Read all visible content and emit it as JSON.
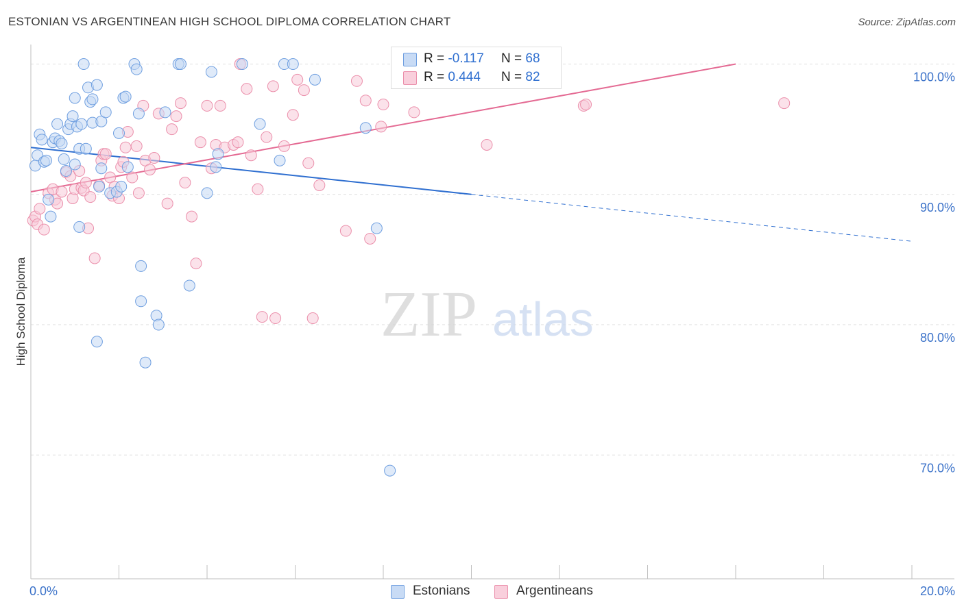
{
  "chart_data": {
    "type": "scatter",
    "title": "ESTONIAN VS ARGENTINEAN HIGH SCHOOL DIPLOMA CORRELATION CHART",
    "source": "Source: ZipAtlas.com",
    "xlabel": "",
    "ylabel": "High School Diploma",
    "xlim": [
      0,
      20
    ],
    "ylim": [
      60.5,
      101.5
    ],
    "x_tick_labels": [
      "0.0%",
      "20.0%"
    ],
    "y_ticks": [
      100,
      90,
      80,
      70
    ],
    "y_tick_labels": [
      "100.0%",
      "90.0%",
      "80.0%",
      "70.0%"
    ],
    "watermark": {
      "part1": "ZIP",
      "part2": "atlas"
    },
    "colors": {
      "blue_fill": "#c5d8f4",
      "blue_stroke": "#6f9fe0",
      "blue_line": "#2f6fd0",
      "pink_fill": "#f8cad8",
      "pink_stroke": "#eb8fab",
      "pink_line": "#e46a93",
      "tick_label": "#3b72c9",
      "grid": "#dedede"
    },
    "stats": {
      "estonians": {
        "r_label": "R = ",
        "r_value": "-0.117",
        "n_label": "N = ",
        "n_value": "68"
      },
      "argentineans": {
        "r_label": "R = ",
        "r_value": "0.444",
        "n_label": "N = ",
        "n_value": "82"
      }
    },
    "series": [
      {
        "name": "Estonians",
        "trend": {
          "x0": 0.0,
          "y0": 93.6,
          "x1": 10.0,
          "y1": 90.0,
          "x_dash_end": 20.0,
          "y_dash_end": 86.4
        },
        "points": [
          [
            0.1,
            92.2
          ],
          [
            0.15,
            93.0
          ],
          [
            0.2,
            94.6
          ],
          [
            0.25,
            94.2
          ],
          [
            0.3,
            92.5
          ],
          [
            0.35,
            92.6
          ],
          [
            0.4,
            89.6
          ],
          [
            0.45,
            88.3
          ],
          [
            0.5,
            94.0
          ],
          [
            0.55,
            94.3
          ],
          [
            0.6,
            95.4
          ],
          [
            0.65,
            94.1
          ],
          [
            0.7,
            93.9
          ],
          [
            0.75,
            92.7
          ],
          [
            0.8,
            91.8
          ],
          [
            0.85,
            95.0
          ],
          [
            0.9,
            95.4
          ],
          [
            0.95,
            96.0
          ],
          [
            1.0,
            92.3
          ],
          [
            1.05,
            95.2
          ],
          [
            1.1,
            93.5
          ],
          [
            1.15,
            95.4
          ],
          [
            1.0,
            97.4
          ],
          [
            1.1,
            87.5
          ],
          [
            1.2,
            100.0
          ],
          [
            1.25,
            93.5
          ],
          [
            1.3,
            98.2
          ],
          [
            1.35,
            97.1
          ],
          [
            1.4,
            97.3
          ],
          [
            1.4,
            95.5
          ],
          [
            1.5,
            78.7
          ],
          [
            1.5,
            98.4
          ],
          [
            1.55,
            90.6
          ],
          [
            1.6,
            95.6
          ],
          [
            1.7,
            96.3
          ],
          [
            1.8,
            90.1
          ],
          [
            1.95,
            90.2
          ],
          [
            2.0,
            94.7
          ],
          [
            2.05,
            90.6
          ],
          [
            2.1,
            97.4
          ],
          [
            2.15,
            97.5
          ],
          [
            2.2,
            92.1
          ],
          [
            2.35,
            100.0
          ],
          [
            2.4,
            99.6
          ],
          [
            2.45,
            96.2
          ],
          [
            2.5,
            81.8
          ],
          [
            2.5,
            84.5
          ],
          [
            2.6,
            77.1
          ],
          [
            2.85,
            80.7
          ],
          [
            2.9,
            80.0
          ],
          [
            3.05,
            96.3
          ],
          [
            3.35,
            100.0
          ],
          [
            3.4,
            100.0
          ],
          [
            3.6,
            83.0
          ],
          [
            4.0,
            90.1
          ],
          [
            4.1,
            99.4
          ],
          [
            4.25,
            93.1
          ],
          [
            4.8,
            100.0
          ],
          [
            5.2,
            95.4
          ],
          [
            5.65,
            92.6
          ],
          [
            5.75,
            100.0
          ],
          [
            5.95,
            100.0
          ],
          [
            6.45,
            98.8
          ],
          [
            7.6,
            95.1
          ],
          [
            7.85,
            87.4
          ],
          [
            8.15,
            68.8
          ],
          [
            4.2,
            92.1
          ],
          [
            1.6,
            92.0
          ]
        ]
      },
      {
        "name": "Argentineans",
        "trend": {
          "x0": 0.0,
          "y0": 90.2,
          "x1": 16.0,
          "y1": 100.0
        },
        "points": [
          [
            0.05,
            88.0
          ],
          [
            0.1,
            88.3
          ],
          [
            0.15,
            87.7
          ],
          [
            0.2,
            88.9
          ],
          [
            0.3,
            87.3
          ],
          [
            0.4,
            90.1
          ],
          [
            0.5,
            90.4
          ],
          [
            0.55,
            89.6
          ],
          [
            0.6,
            89.3
          ],
          [
            0.7,
            90.2
          ],
          [
            0.8,
            91.7
          ],
          [
            0.9,
            91.4
          ],
          [
            0.95,
            89.7
          ],
          [
            1.0,
            90.4
          ],
          [
            1.1,
            91.8
          ],
          [
            1.15,
            90.5
          ],
          [
            1.2,
            90.3
          ],
          [
            1.25,
            90.9
          ],
          [
            1.3,
            87.4
          ],
          [
            1.35,
            89.8
          ],
          [
            1.45,
            85.1
          ],
          [
            1.55,
            90.7
          ],
          [
            1.6,
            92.6
          ],
          [
            1.65,
            93.1
          ],
          [
            1.7,
            93.1
          ],
          [
            1.8,
            91.3
          ],
          [
            1.85,
            89.9
          ],
          [
            1.9,
            90.6
          ],
          [
            2.0,
            89.7
          ],
          [
            2.05,
            92.1
          ],
          [
            2.1,
            92.5
          ],
          [
            2.15,
            93.6
          ],
          [
            2.2,
            94.8
          ],
          [
            2.3,
            91.3
          ],
          [
            2.4,
            93.7
          ],
          [
            2.45,
            90.1
          ],
          [
            2.55,
            96.8
          ],
          [
            2.6,
            92.6
          ],
          [
            2.7,
            91.9
          ],
          [
            2.8,
            92.8
          ],
          [
            2.9,
            96.2
          ],
          [
            3.1,
            89.3
          ],
          [
            3.2,
            95.0
          ],
          [
            3.3,
            96.0
          ],
          [
            3.4,
            97.0
          ],
          [
            3.5,
            90.9
          ],
          [
            3.65,
            88.3
          ],
          [
            3.75,
            84.7
          ],
          [
            3.85,
            94.0
          ],
          [
            4.0,
            96.8
          ],
          [
            4.1,
            92.0
          ],
          [
            4.2,
            93.8
          ],
          [
            4.3,
            96.8
          ],
          [
            4.4,
            93.6
          ],
          [
            4.6,
            93.8
          ],
          [
            4.7,
            94.0
          ],
          [
            4.75,
            100.0
          ],
          [
            4.9,
            98.1
          ],
          [
            5.0,
            93.0
          ],
          [
            5.15,
            90.4
          ],
          [
            5.25,
            80.6
          ],
          [
            5.35,
            94.4
          ],
          [
            5.5,
            98.3
          ],
          [
            5.55,
            80.5
          ],
          [
            5.75,
            93.7
          ],
          [
            5.95,
            96.1
          ],
          [
            6.05,
            98.8
          ],
          [
            6.2,
            98.0
          ],
          [
            6.3,
            92.4
          ],
          [
            6.4,
            80.5
          ],
          [
            6.55,
            90.7
          ],
          [
            7.15,
            87.2
          ],
          [
            7.4,
            98.7
          ],
          [
            7.6,
            97.2
          ],
          [
            7.7,
            86.6
          ],
          [
            7.95,
            95.2
          ],
          [
            8.0,
            96.9
          ],
          [
            8.7,
            96.3
          ],
          [
            10.35,
            93.8
          ],
          [
            12.55,
            96.8
          ],
          [
            12.6,
            96.9
          ],
          [
            17.1,
            97.0
          ]
        ]
      }
    ],
    "legend": [
      "Estonians",
      "Argentineans"
    ]
  }
}
